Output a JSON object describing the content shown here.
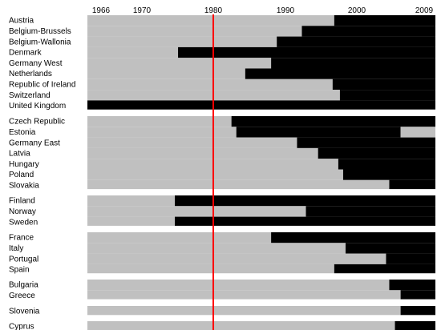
{
  "chart_data": {
    "type": "bar",
    "title": "",
    "xlabel": "",
    "ylabel": "",
    "x_ticks": [
      "1966",
      "1970",
      "1980",
      "1990",
      "2000",
      "2009"
    ],
    "xlim": [
      1966,
      2009
    ],
    "reference_line": {
      "year": 1980,
      "color": "#ff0000"
    },
    "series": [
      {
        "color": "#c0c0c0",
        "meaning_of_value": "year until which segment is grey"
      },
      {
        "color": "#000000",
        "meaning_of_value": "year from which segment is black"
      }
    ],
    "groups": [
      {
        "countries": [
          {
            "name": "Austria",
            "switch_year": 1996.5
          },
          {
            "name": "Belgium-Brussels",
            "switch_year": 1992.5
          },
          {
            "name": "Belgium-Wallonia",
            "switch_year": 1989.4
          },
          {
            "name": "Denmark",
            "switch_year": 1977.2
          },
          {
            "name": "Germany West",
            "switch_year": 1988.7
          },
          {
            "name": "Netherlands",
            "switch_year": 1985.5
          },
          {
            "name": "Republic of Ireland",
            "switch_year": 1996.3
          },
          {
            "name": "Switzerland",
            "switch_year": 1997.2
          },
          {
            "name": "United Kingdom",
            "switch_year": 1966
          }
        ]
      },
      {
        "countries": [
          {
            "name": "Czech Republic",
            "switch_year": 1983.8
          },
          {
            "name": "Estonia",
            "switch_year": 1984.4,
            "end_grey_from": 2004.7
          },
          {
            "name": "Germany East",
            "switch_year": 1991.9
          },
          {
            "name": "Latvia",
            "switch_year": 1994.5
          },
          {
            "name": "Hungary",
            "switch_year": 1997.0
          },
          {
            "name": "Poland",
            "switch_year": 1997.6
          },
          {
            "name": "Slovakia",
            "switch_year": 2003.3
          }
        ]
      },
      {
        "countries": [
          {
            "name": "Finland",
            "switch_year": 1976.8
          },
          {
            "name": "Norway",
            "switch_year": 1993.0
          },
          {
            "name": "Sweden",
            "switch_year": 1976.8
          }
        ]
      },
      {
        "countries": [
          {
            "name": "France",
            "switch_year": 1988.7
          },
          {
            "name": "Italy",
            "switch_year": 1997.9
          },
          {
            "name": "Portugal",
            "switch_year": 2002.9
          },
          {
            "name": "Spain",
            "switch_year": 1996.5
          }
        ]
      },
      {
        "countries": [
          {
            "name": "Bulgaria",
            "switch_year": 2003.3
          },
          {
            "name": "Greece",
            "switch_year": 2004.7
          }
        ]
      },
      {
        "countries": [
          {
            "name": "Slovenia",
            "switch_year": 2004.7
          }
        ]
      },
      {
        "countries": [
          {
            "name": "Cyprus",
            "switch_year": 2004.0
          }
        ]
      }
    ]
  }
}
